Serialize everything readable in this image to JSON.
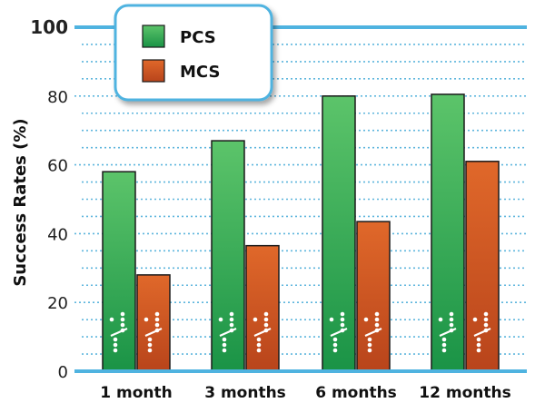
{
  "chart_data": {
    "type": "bar",
    "title": "",
    "xlabel": "",
    "ylabel": "Success Rates (%)",
    "ylim": [
      0,
      100
    ],
    "yticks": [
      {
        "label": "0",
        "value": 0
      },
      {
        "label": "20",
        "value": 20
      },
      {
        "label": "40",
        "value": 40
      },
      {
        "label": "60",
        "value": 60
      },
      {
        "label": "80",
        "value": 80
      },
      {
        "label": "100",
        "value": 100,
        "major": true
      }
    ],
    "minor_grid_step": 5,
    "grid": true,
    "legend_position": "top-left",
    "categories": [
      "1 month",
      "3 months",
      "6 months",
      "12 months"
    ],
    "series": [
      {
        "name": "PCS",
        "values": [
          58,
          67,
          80,
          80.5
        ]
      },
      {
        "name": "MCS",
        "values": [
          28,
          36.5,
          43.5,
          61
        ]
      }
    ]
  },
  "colors": {
    "pcs_top": "#5cc46a",
    "pcs_bottom": "#1a9346",
    "mcs_top": "#e0682a",
    "mcs_bottom": "#b8441b",
    "grid": "#5fb6dd",
    "axis": "#4fb3e0",
    "legend_border": "#4fb3e0"
  },
  "bar_marker_icon": "dotted-slash-icon"
}
